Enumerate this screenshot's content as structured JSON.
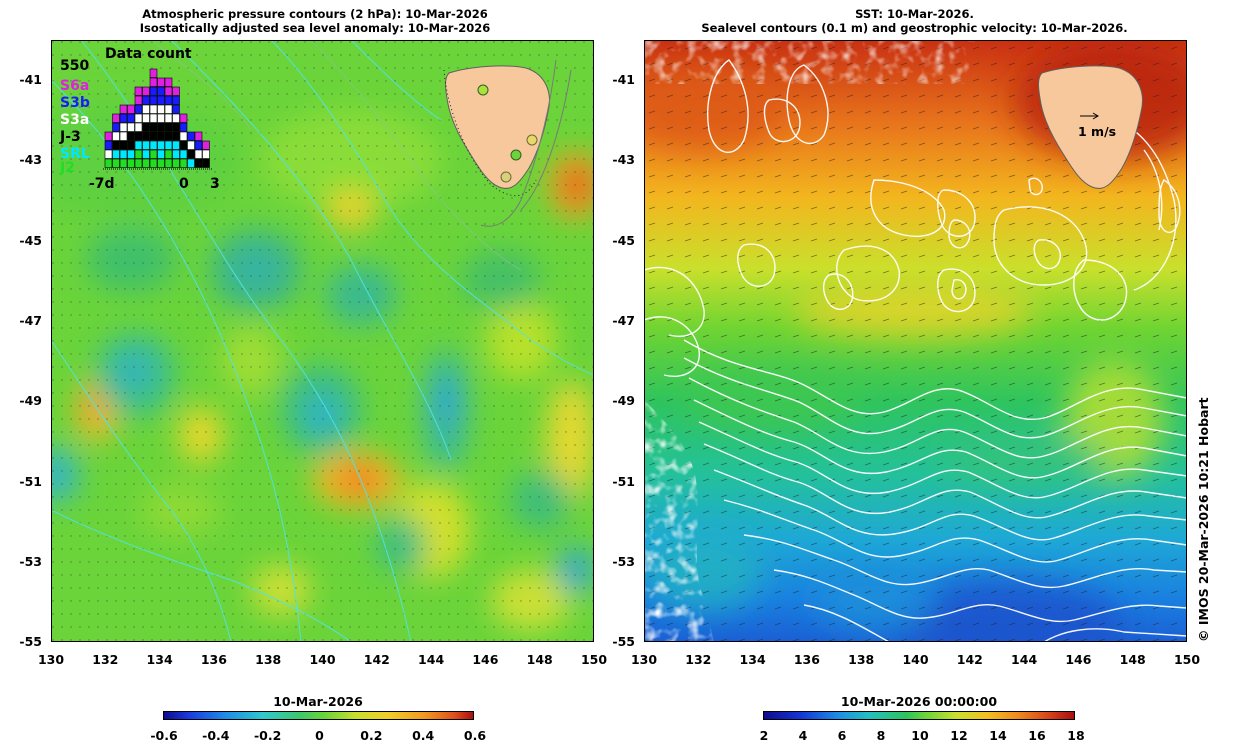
{
  "left_panel": {
    "title_line1": "Atmospheric pressure contours (2 hPa): 10-Mar-2026",
    "title_line2": "Isostatically adjusted sea level anomaly: 10-Mar-2026",
    "colorbar": {
      "title": "10-Mar-2026",
      "ticks": [
        "-0.6",
        "-0.4",
        "-0.2",
        "0",
        "0.2",
        "0.4",
        "0.6"
      ]
    }
  },
  "right_panel": {
    "title_line1": "SST: 10-Mar-2026.",
    "title_line2": "Sealevel contours (0.1 m) and geostrophic velocity: 10-Mar-2026.",
    "velocity_scale_label": "1 m/s",
    "colorbar": {
      "title": "10-Mar-2026 00:00:00",
      "ticks": [
        "2",
        "4",
        "6",
        "8",
        "10",
        "12",
        "14",
        "16",
        "18"
      ]
    }
  },
  "latitude_labels": [
    "-41",
    "-43",
    "-45",
    "-47",
    "-49",
    "-51",
    "-53",
    "-55"
  ],
  "longitude_labels": [
    "130",
    "132",
    "134",
    "136",
    "138",
    "140",
    "142",
    "144",
    "146",
    "148",
    "150"
  ],
  "data_count_inset": {
    "title": "Data count",
    "max_label": "550",
    "missions": [
      {
        "name": "S6a",
        "color": "#e020e0"
      },
      {
        "name": "S3b",
        "color": "#1a1aff"
      },
      {
        "name": "S3a",
        "color": "#ffffff"
      },
      {
        "name": "J-3",
        "color": "#000000"
      },
      {
        "name": "SRL",
        "color": "#00e8ff"
      },
      {
        "name": "J2",
        "color": "#22dd22"
      }
    ],
    "axis_labels": [
      "-7d",
      "0",
      "3"
    ]
  },
  "credit": "© IMOS 20-Mar-2026 10:21 Hobart",
  "colors": {
    "land": "#f7c89b",
    "coast": "#707070",
    "contour": "#ffffff"
  }
}
